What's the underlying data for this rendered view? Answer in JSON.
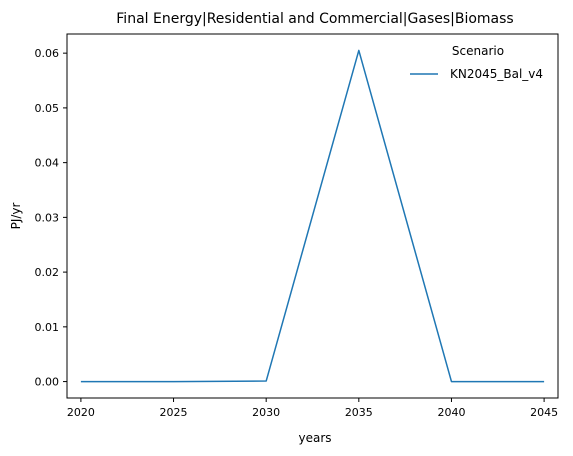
{
  "chart_data": {
    "type": "line",
    "title": "Final Energy|Residential and Commercial|Gases|Biomass",
    "xlabel": "years",
    "ylabel": "PJ/yr",
    "x": [
      2020,
      2025,
      2030,
      2035,
      2040,
      2045
    ],
    "x_ticks": [
      "2020",
      "2025",
      "2030",
      "2035",
      "2040",
      "2045"
    ],
    "y_ticks": [
      "0.00",
      "0.01",
      "0.02",
      "0.03",
      "0.04",
      "0.05",
      "0.06"
    ],
    "xlim": [
      2019.25,
      2045.75
    ],
    "ylim": [
      -0.003,
      0.0635
    ],
    "grid": false,
    "legend": {
      "title": "Scenario",
      "placement": "top-right"
    },
    "series": [
      {
        "name": "KN2045_Bal_v4",
        "color": "#1f77b4",
        "values": [
          0.0,
          0.0,
          0.0001,
          0.0605,
          0.0,
          0.0
        ]
      }
    ]
  }
}
